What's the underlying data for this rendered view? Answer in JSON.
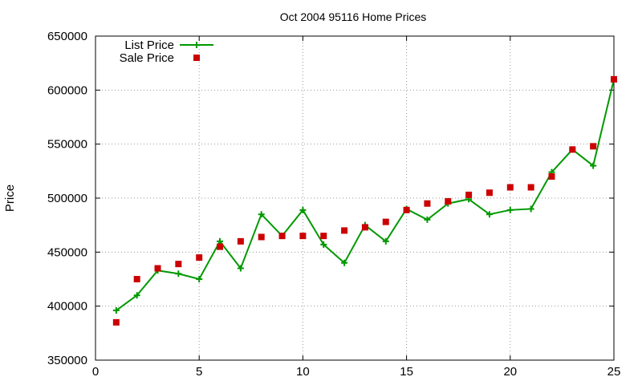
{
  "chart_data": {
    "type": "line",
    "title": "Oct 2004 95116 Home Prices",
    "xlabel": "",
    "ylabel": "Price",
    "xlim": [
      0,
      25
    ],
    "ylim": [
      350000,
      650000
    ],
    "x_ticks": [
      0,
      5,
      10,
      15,
      20,
      25
    ],
    "y_ticks": [
      350000,
      400000,
      450000,
      500000,
      550000,
      600000,
      650000
    ],
    "grid": true,
    "legend_position": "top-left",
    "series": [
      {
        "name": "List Price",
        "style": "line-plus",
        "color": "#009900",
        "x": [
          1,
          2,
          3,
          4,
          5,
          6,
          7,
          8,
          9,
          10,
          11,
          12,
          13,
          14,
          15,
          16,
          17,
          18,
          19,
          20,
          21,
          22,
          23,
          24,
          25
        ],
        "values": [
          396000,
          410000,
          433000,
          430000,
          425000,
          460000,
          435000,
          485000,
          465000,
          489000,
          457000,
          440000,
          475000,
          460000,
          490000,
          480000,
          495000,
          499000,
          485000,
          489000,
          490000,
          524000,
          545000,
          530000,
          610000
        ]
      },
      {
        "name": "Sale Price",
        "style": "square-points",
        "color": "#cc0000",
        "x": [
          1,
          2,
          3,
          4,
          5,
          6,
          7,
          8,
          9,
          10,
          11,
          12,
          13,
          14,
          15,
          16,
          17,
          18,
          19,
          20,
          21,
          22,
          23,
          24,
          25
        ],
        "values": [
          385000,
          425000,
          435000,
          439000,
          445000,
          455000,
          460000,
          464000,
          465000,
          465000,
          465000,
          470000,
          473000,
          478000,
          489000,
          495000,
          497000,
          503000,
          505000,
          510000,
          510000,
          520000,
          545000,
          548000,
          610000
        ]
      }
    ]
  }
}
